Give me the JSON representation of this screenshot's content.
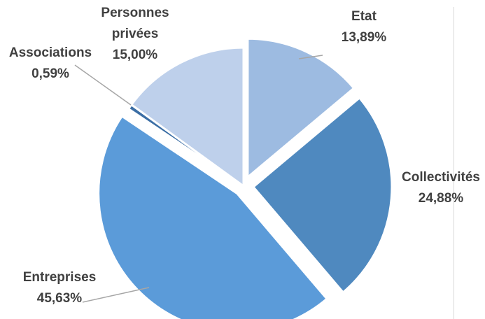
{
  "chart_data": {
    "type": "pie",
    "title": "",
    "categories": [
      "Etat",
      "Collectivités",
      "Entreprises",
      "Associations",
      "Personnes privées"
    ],
    "values": [
      13.89,
      24.88,
      45.63,
      0.59,
      15.0
    ],
    "value_labels": [
      "13,89%",
      "24,88%",
      "45,63%",
      "0,59%",
      "15,00%"
    ],
    "label_lines": [
      [
        "Etat"
      ],
      [
        "Collectivités"
      ],
      [
        "Entreprises"
      ],
      [
        "Associations"
      ],
      [
        "Personnes",
        "privées"
      ]
    ],
    "colors": [
      "#9dbbe1",
      "#4f89bf",
      "#5b9bd9",
      "#3b6ea5",
      "#bed0eb"
    ],
    "exploded": [
      true,
      true,
      true,
      false,
      false
    ],
    "start_angle_deg": 0,
    "direction": "clockwise",
    "legend": "none"
  }
}
